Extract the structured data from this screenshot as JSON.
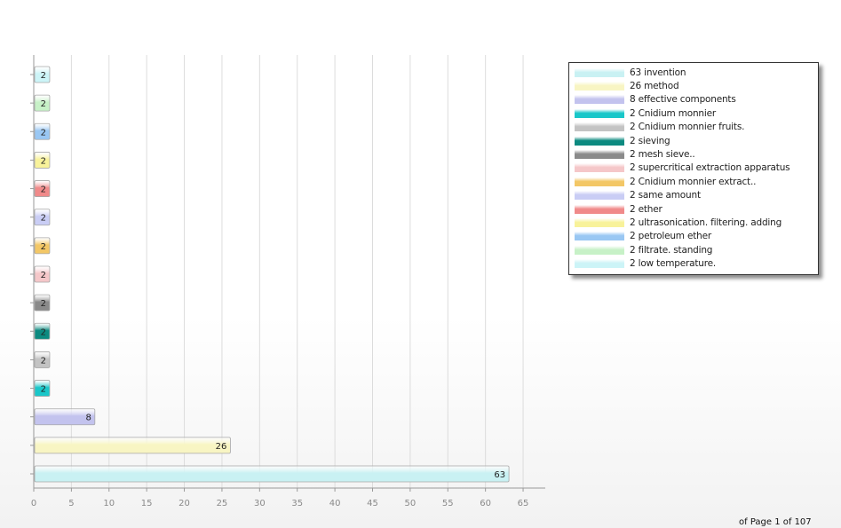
{
  "chart_data": {
    "type": "bar",
    "orientation": "horizontal",
    "series": [
      {
        "name": "63 invention",
        "value": 63,
        "color": "#c9f1f3"
      },
      {
        "name": "26 method",
        "value": 26,
        "color": "#f8f5c3"
      },
      {
        "name": "8 effective components",
        "value": 8,
        "color": "#c3c3ee"
      },
      {
        "name": "2 Cnidium monnier",
        "value": 2,
        "color": "#19c7c9"
      },
      {
        "name": "2 Cnidium monnier fruits.",
        "value": 2,
        "color": "#c3c3c3"
      },
      {
        "name": "2 sieving",
        "value": 2,
        "color": "#0c8a80"
      },
      {
        "name": "2 mesh sieve..",
        "value": 2,
        "color": "#8a8a8a"
      },
      {
        "name": "2 supercritical extraction apparatus",
        "value": 2,
        "color": "#f5c7c9"
      },
      {
        "name": "2 Cnidium monnier extract..",
        "value": 2,
        "color": "#f3c766"
      },
      {
        "name": "2 same amount",
        "value": 2,
        "color": "#c9cdf5"
      },
      {
        "name": "2 ether",
        "value": 2,
        "color": "#f08a8a"
      },
      {
        "name": "2 ultrasonication. filtering. adding",
        "value": 2,
        "color": "#f8f29a"
      },
      {
        "name": "2 petroleum ether",
        "value": 2,
        "color": "#99c7f3"
      },
      {
        "name": "2 filtrate. standing",
        "value": 2,
        "color": "#c7f1c7"
      },
      {
        "name": "2 low temperature.",
        "value": 2,
        "color": "#ccf4f7"
      }
    ],
    "xlim": [
      0,
      67
    ],
    "x_ticks": [
      0,
      5,
      10,
      15,
      20,
      25,
      30,
      35,
      40,
      45,
      50,
      55,
      60,
      65
    ],
    "grid": "vertical",
    "legend_position": "top-right"
  },
  "footer": {
    "page_text": "of Page 1 of 107"
  }
}
